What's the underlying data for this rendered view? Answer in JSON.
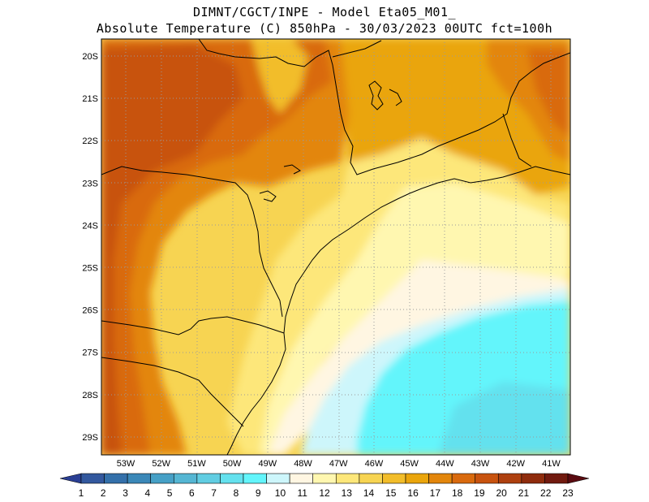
{
  "header": {
    "line1": "DIMNT/CGCT/INPE -  Model Eta05_M01_",
    "line2": "Absolute Temperature (C) 850hPa -  30/03/2023 00UTC fct=100h"
  },
  "map": {
    "lat_labels": [
      "20S",
      "21S",
      "22S",
      "23S",
      "24S",
      "25S",
      "26S",
      "27S",
      "28S",
      "29S"
    ],
    "lon_labels": [
      "53W",
      "52W",
      "51W",
      "50W",
      "49W",
      "48W",
      "47W",
      "46W",
      "45W",
      "44W",
      "43W",
      "42W",
      "41W"
    ],
    "grid": "dotted"
  },
  "colorbar": {
    "labels": [
      "1",
      "2",
      "3",
      "4",
      "5",
      "6",
      "7",
      "8",
      "9",
      "10",
      "11",
      "12",
      "13",
      "14",
      "15",
      "16",
      "17",
      "18",
      "19",
      "20",
      "21",
      "22",
      "23"
    ],
    "colors": [
      "#2a3f94",
      "#33589e",
      "#3470aa",
      "#3b88b8",
      "#46a0c6",
      "#55b6d3",
      "#61cde2",
      "#64e1ee",
      "#63f5fb",
      "#cdf6fb",
      "#fff6e2",
      "#fff7b0",
      "#fde77a",
      "#f7d452",
      "#f2bd2a",
      "#eaa50c",
      "#e3860c",
      "#d96a0e",
      "#c8530f",
      "#ae400f",
      "#8f2c0d",
      "#711a0f",
      "#5a0a10"
    ]
  }
}
